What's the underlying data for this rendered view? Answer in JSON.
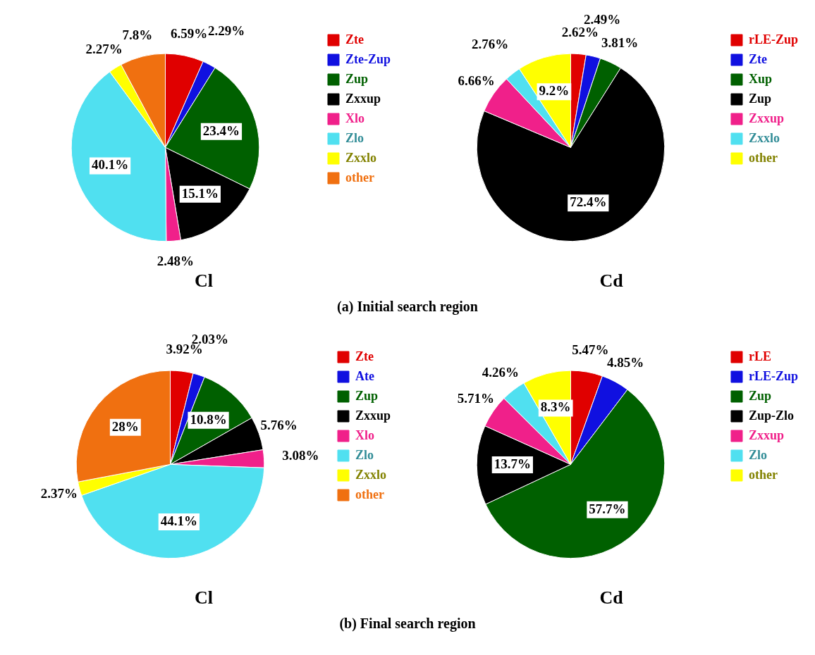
{
  "chart_data": [
    {
      "type": "pie",
      "title": "Cl",
      "categories": [
        "Zte",
        "Zte-Zup",
        "Zup",
        "Zxxup",
        "Xlo",
        "Zlo",
        "Zxxlo",
        "other"
      ],
      "values": [
        6.59,
        2.29,
        23.4,
        15.1,
        2.48,
        40.1,
        2.27,
        7.8
      ],
      "colors": [
        "#e00000",
        "#1010e0",
        "#006000",
        "#000000",
        "#f0208a",
        "#50e0f0",
        "#ffff00",
        "#f07010"
      ],
      "value_labels": [
        "6.59%",
        "2.29%",
        "23.4%",
        "15.1%",
        "2.48%",
        "40.1%",
        "2.27%",
        "7.8%"
      ],
      "legend": "top right",
      "annotations": [
        "(a) Initial search region"
      ]
    },
    {
      "type": "pie",
      "title": "Cd",
      "categories": [
        "rLE-Zup",
        "Zte",
        "Xup",
        "Zup",
        "Zxxup",
        "Zxxlo",
        "other"
      ],
      "values": [
        2.62,
        2.49,
        3.81,
        72.4,
        6.66,
        2.76,
        9.2
      ],
      "colors": [
        "#e00000",
        "#1010e0",
        "#006000",
        "#000000",
        "#f0208a",
        "#50e0f0",
        "#ffff00"
      ],
      "value_labels": [
        "2.62%",
        "2.49%",
        "3.81%",
        "72.4%",
        "6.66%",
        "2.76%",
        "9.2%"
      ],
      "legend": "top right"
    },
    {
      "type": "pie",
      "title": "Cl",
      "categories": [
        "Zte",
        "Ate",
        "Zup",
        "Zxxup",
        "Xlo",
        "Zlo",
        "Zxxlo",
        "other"
      ],
      "values": [
        3.92,
        2.03,
        10.8,
        5.76,
        3.08,
        44.1,
        2.37,
        28
      ],
      "colors": [
        "#e00000",
        "#1010e0",
        "#006000",
        "#000000",
        "#f0208a",
        "#50e0f0",
        "#ffff00",
        "#f07010"
      ],
      "value_labels": [
        "3.92%",
        "2.03%",
        "10.8%",
        "5.76%",
        "3.08%",
        "44.1%",
        "2.37%",
        "28%"
      ],
      "legend": "top right",
      "annotations": [
        "(b) Final search region"
      ]
    },
    {
      "type": "pie",
      "title": "Cd",
      "categories": [
        "rLE",
        "rLE-Zup",
        "Zup",
        "Zup-Zlo",
        "Zxxup",
        "Zlo",
        "other"
      ],
      "values": [
        5.47,
        4.85,
        57.7,
        13.7,
        5.71,
        4.26,
        8.3
      ],
      "colors": [
        "#e00000",
        "#1010e0",
        "#006000",
        "#000000",
        "#f0208a",
        "#50e0f0",
        "#ffff00"
      ],
      "value_labels": [
        "5.47%",
        "4.85%",
        "57.7%",
        "13.7%",
        "5.71%",
        "4.26%",
        "8.3%"
      ],
      "legend": "top right"
    }
  ]
}
